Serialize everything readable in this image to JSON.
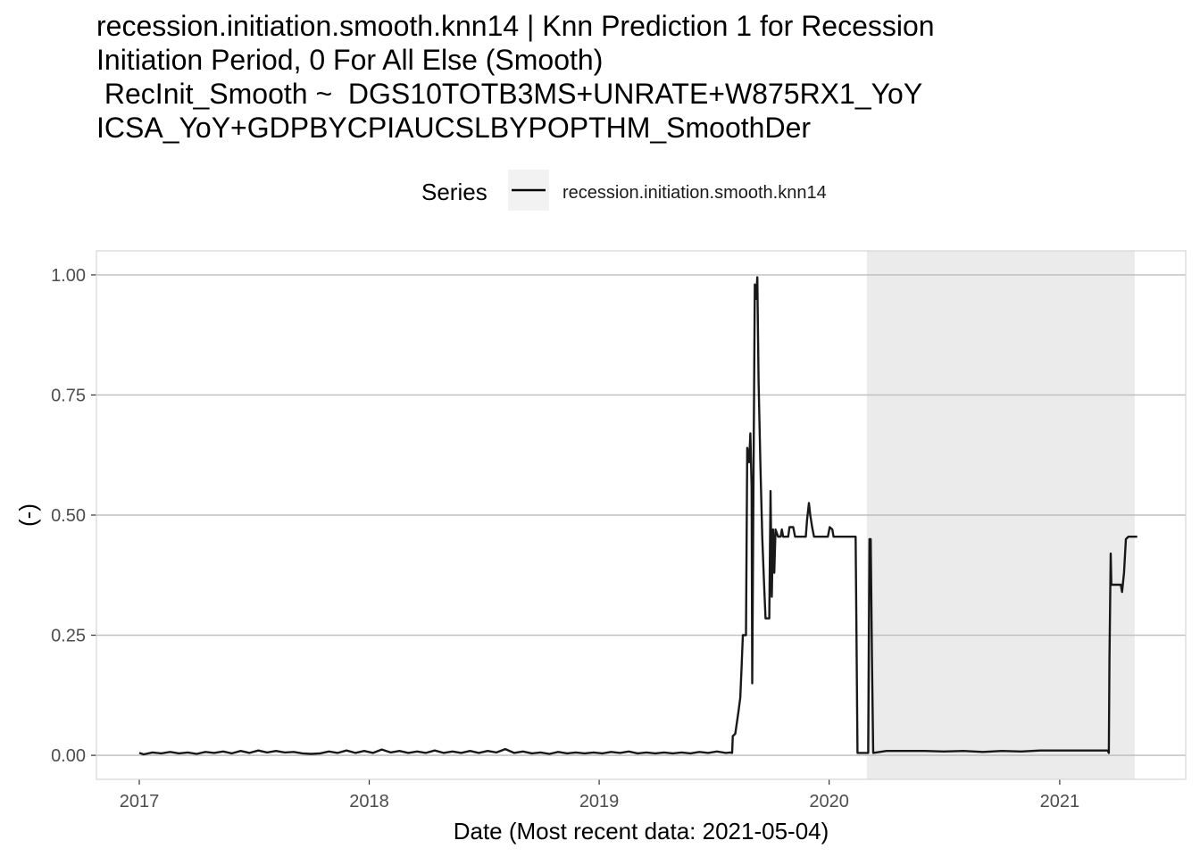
{
  "chart_data": {
    "type": "line",
    "title_lines": [
      "recession.initiation.smooth.knn14 | Knn Prediction 1 for Recession",
      "Initiation Period, 0 For All Else (Smooth)",
      " RecInit_Smooth ~  DGS10TOTB3MS+UNRATE+W875RX1_YoY",
      "ICSA_YoY+GDPBYCPIAUCSLBYPOPTHM_SmoothDer"
    ],
    "xlabel": "Date (Most recent data: 2021-05-04)",
    "ylabel": "(-)",
    "legend": {
      "title": "Series",
      "placement": "top"
    },
    "x_ticks": [
      "2017",
      "2018",
      "2019",
      "2020",
      "2021"
    ],
    "y_ticks": [
      "0.00",
      "0.25",
      "0.50",
      "0.75",
      "1.00"
    ],
    "xlim": [
      "2016-10-25",
      "2021-07-20"
    ],
    "ylim": [
      -0.05,
      1.05
    ],
    "grid": true,
    "colors": {
      "line": "#000000",
      "shade": "#ebebeb",
      "grid": "#bdbdbd",
      "border": "#d6d6d6"
    },
    "shaded_regions": [
      {
        "start": "2020-03-01",
        "end": "2021-04-30"
      }
    ],
    "series": [
      {
        "name": "recession.initiation.smooth.knn14",
        "points": [
          [
            "2017-01-01",
            0.005
          ],
          [
            "2017-01-08",
            0.002
          ],
          [
            "2017-01-22",
            0.006
          ],
          [
            "2017-02-05",
            0.004
          ],
          [
            "2017-02-19",
            0.007
          ],
          [
            "2017-03-05",
            0.004
          ],
          [
            "2017-03-19",
            0.006
          ],
          [
            "2017-04-02",
            0.003
          ],
          [
            "2017-04-16",
            0.007
          ],
          [
            "2017-04-30",
            0.005
          ],
          [
            "2017-05-14",
            0.008
          ],
          [
            "2017-05-28",
            0.004
          ],
          [
            "2017-06-11",
            0.009
          ],
          [
            "2017-06-25",
            0.005
          ],
          [
            "2017-07-09",
            0.01
          ],
          [
            "2017-07-23",
            0.006
          ],
          [
            "2017-08-06",
            0.009
          ],
          [
            "2017-08-20",
            0.006
          ],
          [
            "2017-09-03",
            0.007
          ],
          [
            "2017-09-17",
            0.004
          ],
          [
            "2017-10-01",
            0.003
          ],
          [
            "2017-10-15",
            0.004
          ],
          [
            "2017-10-29",
            0.008
          ],
          [
            "2017-11-12",
            0.005
          ],
          [
            "2017-11-26",
            0.01
          ],
          [
            "2017-12-10",
            0.005
          ],
          [
            "2017-12-24",
            0.009
          ],
          [
            "2018-01-07",
            0.005
          ],
          [
            "2018-01-21",
            0.012
          ],
          [
            "2018-02-04",
            0.006
          ],
          [
            "2018-02-18",
            0.009
          ],
          [
            "2018-03-04",
            0.005
          ],
          [
            "2018-03-18",
            0.008
          ],
          [
            "2018-04-01",
            0.005
          ],
          [
            "2018-04-15",
            0.01
          ],
          [
            "2018-04-29",
            0.005
          ],
          [
            "2018-05-13",
            0.008
          ],
          [
            "2018-05-27",
            0.005
          ],
          [
            "2018-06-10",
            0.009
          ],
          [
            "2018-06-24",
            0.005
          ],
          [
            "2018-07-08",
            0.009
          ],
          [
            "2018-07-22",
            0.006
          ],
          [
            "2018-08-05",
            0.013
          ],
          [
            "2018-08-19",
            0.005
          ],
          [
            "2018-09-02",
            0.008
          ],
          [
            "2018-09-16",
            0.004
          ],
          [
            "2018-09-30",
            0.006
          ],
          [
            "2018-10-14",
            0.003
          ],
          [
            "2018-10-28",
            0.007
          ],
          [
            "2018-11-11",
            0.004
          ],
          [
            "2018-11-25",
            0.006
          ],
          [
            "2018-12-09",
            0.004
          ],
          [
            "2018-12-23",
            0.006
          ],
          [
            "2019-01-06",
            0.004
          ],
          [
            "2019-01-20",
            0.007
          ],
          [
            "2019-02-03",
            0.005
          ],
          [
            "2019-02-17",
            0.008
          ],
          [
            "2019-03-03",
            0.004
          ],
          [
            "2019-03-17",
            0.006
          ],
          [
            "2019-03-31",
            0.004
          ],
          [
            "2019-04-14",
            0.006
          ],
          [
            "2019-04-28",
            0.004
          ],
          [
            "2019-05-12",
            0.006
          ],
          [
            "2019-05-26",
            0.004
          ],
          [
            "2019-06-09",
            0.007
          ],
          [
            "2019-06-23",
            0.005
          ],
          [
            "2019-07-07",
            0.008
          ],
          [
            "2019-07-21",
            0.005
          ],
          [
            "2019-07-28",
            0.006
          ],
          [
            "2019-07-31",
            0.005
          ],
          [
            "2019-08-01",
            0.04
          ],
          [
            "2019-08-05",
            0.045
          ],
          [
            "2019-08-10",
            0.09
          ],
          [
            "2019-08-13",
            0.12
          ],
          [
            "2019-08-15",
            0.18
          ],
          [
            "2019-08-17",
            0.25
          ],
          [
            "2019-08-22",
            0.25
          ],
          [
            "2019-08-24",
            0.64
          ],
          [
            "2019-08-27",
            0.61
          ],
          [
            "2019-08-29",
            0.67
          ],
          [
            "2019-08-31",
            0.56
          ],
          [
            "2019-09-01",
            0.15
          ],
          [
            "2019-09-03",
            0.6
          ],
          [
            "2019-09-05",
            0.98
          ],
          [
            "2019-09-07",
            0.95
          ],
          [
            "2019-09-09",
            0.995
          ],
          [
            "2019-09-11",
            0.78
          ],
          [
            "2019-09-14",
            0.6
          ],
          [
            "2019-09-17",
            0.45
          ],
          [
            "2019-09-20",
            0.35
          ],
          [
            "2019-09-22",
            0.285
          ],
          [
            "2019-09-28",
            0.285
          ],
          [
            "2019-09-30",
            0.55
          ],
          [
            "2019-10-02",
            0.33
          ],
          [
            "2019-10-04",
            0.47
          ],
          [
            "2019-10-06",
            0.38
          ],
          [
            "2019-10-08",
            0.47
          ],
          [
            "2019-10-12",
            0.455
          ],
          [
            "2019-10-16",
            0.455
          ],
          [
            "2019-10-18",
            0.47
          ],
          [
            "2019-10-20",
            0.455
          ],
          [
            "2019-10-28",
            0.455
          ],
          [
            "2019-10-30",
            0.475
          ],
          [
            "2019-11-05",
            0.475
          ],
          [
            "2019-11-08",
            0.455
          ],
          [
            "2019-11-25",
            0.455
          ],
          [
            "2019-11-27",
            0.49
          ],
          [
            "2019-11-30",
            0.525
          ],
          [
            "2019-12-02",
            0.5
          ],
          [
            "2019-12-05",
            0.475
          ],
          [
            "2019-12-08",
            0.455
          ],
          [
            "2019-12-30",
            0.455
          ],
          [
            "2020-01-02",
            0.475
          ],
          [
            "2020-01-06",
            0.47
          ],
          [
            "2020-01-08",
            0.455
          ],
          [
            "2020-02-10",
            0.455
          ],
          [
            "2020-02-12",
            0.455
          ],
          [
            "2020-02-15",
            0.005
          ],
          [
            "2020-03-03",
            0.005
          ],
          [
            "2020-03-05",
            0.45
          ],
          [
            "2020-03-07",
            0.45
          ],
          [
            "2020-03-09",
            0.2
          ],
          [
            "2020-03-11",
            0.005
          ],
          [
            "2020-04-01",
            0.009
          ],
          [
            "2020-05-01",
            0.009
          ],
          [
            "2020-06-01",
            0.009
          ],
          [
            "2020-07-01",
            0.008
          ],
          [
            "2020-08-01",
            0.009
          ],
          [
            "2020-09-01",
            0.007
          ],
          [
            "2020-10-01",
            0.009
          ],
          [
            "2020-11-01",
            0.008
          ],
          [
            "2020-12-01",
            0.01
          ],
          [
            "2021-01-01",
            0.01
          ],
          [
            "2021-02-01",
            0.01
          ],
          [
            "2021-03-01",
            0.01
          ],
          [
            "2021-03-18",
            0.01
          ],
          [
            "2021-03-20",
            0.005
          ],
          [
            "2021-03-21",
            0.2
          ],
          [
            "2021-03-23",
            0.42
          ],
          [
            "2021-03-24",
            0.355
          ],
          [
            "2021-04-08",
            0.355
          ],
          [
            "2021-04-10",
            0.34
          ],
          [
            "2021-04-13",
            0.38
          ],
          [
            "2021-04-16",
            0.45
          ],
          [
            "2021-04-20",
            0.455
          ],
          [
            "2021-05-04",
            0.455
          ]
        ]
      }
    ]
  }
}
